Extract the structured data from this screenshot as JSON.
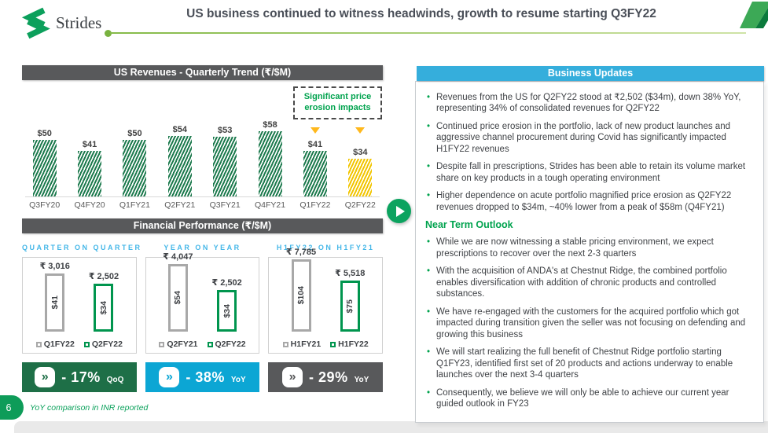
{
  "header": {
    "logo_text": "Strides",
    "title": "US business continued to witness headwinds, growth to resume starting Q3FY22"
  },
  "revenue_panel": {
    "title": "US Revenues - Quarterly Trend (₹/$M)"
  },
  "financial_panel": {
    "title": "Financial Performance (₹/$M)"
  },
  "chart_data": [
    {
      "type": "bar",
      "title": "US Revenues - Quarterly Trend (₹/$M)",
      "categories": [
        "Q3FY20",
        "Q4FY20",
        "Q1FY21",
        "Q2FY21",
        "Q3FY21",
        "Q4FY21",
        "Q1FY22",
        "Q2FY22"
      ],
      "values": [
        50,
        41,
        50,
        54,
        53,
        58,
        41,
        34
      ],
      "value_prefix": "$",
      "highlight_index": 7,
      "annotation": "Significant price erosion impacts",
      "annotation_targets": [
        "Q1FY22",
        "Q2FY22"
      ],
      "bar_color": "#1C7A4D",
      "highlight_color": "#F2C500",
      "grid": false,
      "legend": "none"
    },
    {
      "type": "bar",
      "title": "QUARTER ON QUARTER",
      "categories": [
        "Q1FY22",
        "Q2FY22"
      ],
      "values_inr": [
        3016,
        2502
      ],
      "values_usd": [
        41,
        34
      ],
      "inr_labels": [
        "₹ 3,016",
        "₹ 2,502"
      ],
      "usd_labels": [
        "$41",
        "$34"
      ],
      "styles": [
        "gray",
        "green"
      ],
      "badge": {
        "delta": "- 17%",
        "unit": "QoQ",
        "bg": "#1E6F47"
      }
    },
    {
      "type": "bar",
      "title": "YEAR ON YEAR",
      "categories": [
        "Q2FY21",
        "Q2FY22"
      ],
      "values_inr": [
        4047,
        2502
      ],
      "values_usd": [
        54,
        34
      ],
      "inr_labels": [
        "₹ 4,047",
        "₹ 2,502"
      ],
      "usd_labels": [
        "$54",
        "$34"
      ],
      "styles": [
        "gray",
        "green"
      ],
      "badge": {
        "delta": "- 38%",
        "unit": "YoY",
        "bg": "#0CA6D4"
      }
    },
    {
      "type": "bar",
      "title": "H1FY22 ON H1FY21",
      "categories": [
        "H1FY21",
        "H1FY22"
      ],
      "values_inr": [
        7785,
        5518
      ],
      "values_usd": [
        104,
        75
      ],
      "inr_labels": [
        "₹ 7,785",
        "₹ 5,518"
      ],
      "usd_labels": [
        "$104",
        "$75"
      ],
      "styles": [
        "gray",
        "green"
      ],
      "badge": {
        "delta": "- 29%",
        "unit": "YoY",
        "bg": "#58595B"
      }
    }
  ],
  "business_updates": {
    "title": "Business Updates",
    "bullets": [
      "Revenues from the US for Q2FY22 stood at ₹2,502 ($34m), down 38% YoY, representing 34% of consolidated revenues for Q2FY22",
      "Continued price erosion in the portfolio, lack of new product launches and aggressive channel procurement during Covid has significantly impacted H1FY22 revenues",
      "Despite fall in prescriptions, Strides has been able to retain its volume market share on key products in a tough operating environment",
      "Higher dependence on acute portfolio magnified price erosion as Q2FY22 revenues dropped to $34m, ~40% lower from a peak of $58m (Q4FY21)"
    ],
    "outlook_heading": "Near Term Outlook",
    "outlook_bullets": [
      "While we are now witnessing a stable pricing environment, we expect prescriptions to recover over the next 2-3 quarters",
      "With the acquisition of ANDA's at Chestnut Ridge, the combined portfolio enables diversification with addition of chronic products and controlled substances.",
      "We have re-engaged with the customers for the acquired portfolio which got impacted during transition given the seller was not focusing on defending and growing this business",
      "We will start realizing the full benefit of Chestnut Ridge portfolio starting Q1FY23, identified first set of 20 products and actions underway to enable launches over the next 3-4 quarters",
      "Consequently, we believe we will only be able to achieve our current year guided outlook in FY23"
    ]
  },
  "footnote": "YoY comparison in INR reported",
  "page_number": "6",
  "colors": {
    "accent_green": "#00A34E",
    "header_gray": "#58595B",
    "header_cyan": "#35AEDC",
    "bar_green": "#1C7A4D",
    "bar_yellow": "#F2C500",
    "marker_orange": "#FFB81C",
    "badge_green": "#1E6F47",
    "badge_cyan": "#0CA6D4",
    "badge_gray": "#58595B"
  }
}
